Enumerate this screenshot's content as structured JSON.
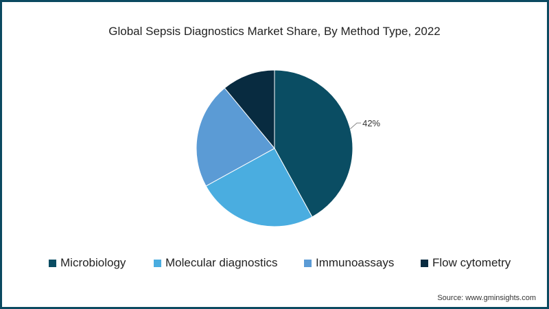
{
  "chart_data": {
    "type": "pie",
    "title": "Global Sepsis Diagnostics Market Share, By Method Type, 2022",
    "categories": [
      "Microbiology",
      "Molecular diagnostics",
      "Immunoassays",
      "Flow cytometry"
    ],
    "values": [
      42,
      25,
      22,
      11
    ],
    "colors": [
      "#0a4d63",
      "#4aade0",
      "#5b9bd5",
      "#082b40"
    ],
    "data_labels": [
      {
        "category": "Microbiology",
        "text": "42%"
      }
    ],
    "legend_position": "bottom",
    "start_angle": "12 o'clock, clockwise"
  },
  "source": "Source: www.gminsights.com"
}
